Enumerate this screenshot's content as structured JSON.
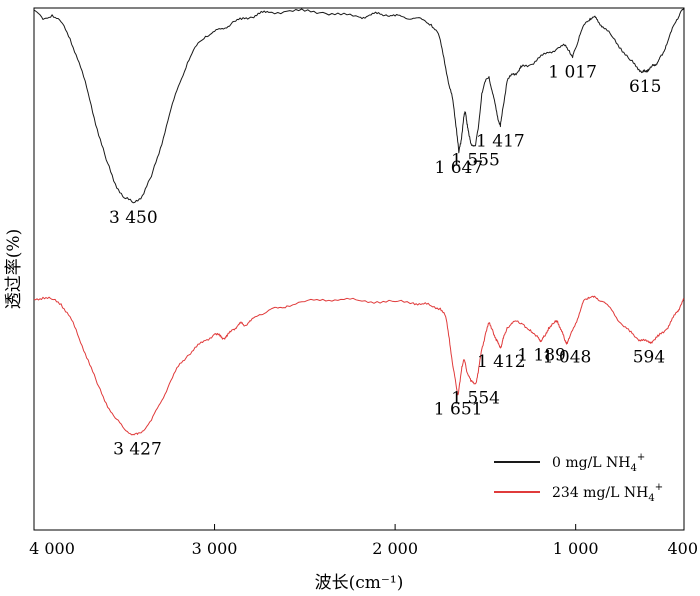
{
  "chart_data": {
    "type": "line",
    "title": "",
    "xlabel": "波长(cm⁻¹)",
    "ylabel": "透过率(%)",
    "xlim": [
      4000,
      400
    ],
    "x_reversed": true,
    "x_ticks": [
      {
        "value": 4000,
        "label": "4 000"
      },
      {
        "value": 3000,
        "label": "3 000"
      },
      {
        "value": 2000,
        "label": "2 000"
      },
      {
        "value": 1000,
        "label": "1 000"
      },
      {
        "value": 400,
        "label": "400"
      }
    ],
    "y_tick_labels": false,
    "grid": false,
    "legend_position": "bottom-right",
    "series": [
      {
        "name": "0 mg/L NH4+",
        "color": "#1a1a1a",
        "points": [
          [
            4000,
            100
          ],
          [
            3950,
            96
          ],
          [
            3900,
            98
          ],
          [
            3850,
            95
          ],
          [
            3800,
            88
          ],
          [
            3750,
            78
          ],
          [
            3700,
            65
          ],
          [
            3650,
            50
          ],
          [
            3600,
            37
          ],
          [
            3550,
            27
          ],
          [
            3500,
            21
          ],
          [
            3450,
            19
          ],
          [
            3400,
            22
          ],
          [
            3350,
            30
          ],
          [
            3300,
            42
          ],
          [
            3250,
            56
          ],
          [
            3200,
            68
          ],
          [
            3150,
            78
          ],
          [
            3100,
            85
          ],
          [
            3050,
            89
          ],
          [
            3000,
            91
          ],
          [
            2950,
            92
          ],
          [
            2900,
            95
          ],
          [
            2850,
            96
          ],
          [
            2800,
            97
          ],
          [
            2750,
            98.5
          ],
          [
            2700,
            99
          ],
          [
            2600,
            99.5
          ],
          [
            2500,
            99.5
          ],
          [
            2400,
            99
          ],
          [
            2300,
            98
          ],
          [
            2200,
            97
          ],
          [
            2150,
            97.5
          ],
          [
            2100,
            98.5
          ],
          [
            2050,
            98
          ],
          [
            2000,
            97.5
          ],
          [
            1950,
            97
          ],
          [
            1900,
            96.5
          ],
          [
            1850,
            96
          ],
          [
            1800,
            94
          ],
          [
            1760,
            90
          ],
          [
            1730,
            80
          ],
          [
            1700,
            68
          ],
          [
            1680,
            62
          ],
          [
            1660,
            50
          ],
          [
            1647,
            40
          ],
          [
            1635,
            45
          ],
          [
            1620,
            55
          ],
          [
            1610,
            57
          ],
          [
            1600,
            52
          ],
          [
            1590,
            47
          ],
          [
            1580,
            44
          ],
          [
            1555,
            43
          ],
          [
            1540,
            50
          ],
          [
            1520,
            65
          ],
          [
            1500,
            70
          ],
          [
            1480,
            72
          ],
          [
            1460,
            65
          ],
          [
            1440,
            58
          ],
          [
            1425,
            53
          ],
          [
            1417,
            51
          ],
          [
            1405,
            58
          ],
          [
            1380,
            70
          ],
          [
            1350,
            73
          ],
          [
            1320,
            74
          ],
          [
            1300,
            76
          ],
          [
            1250,
            77
          ],
          [
            1200,
            80
          ],
          [
            1150,
            82
          ],
          [
            1100,
            84
          ],
          [
            1060,
            85
          ],
          [
            1035,
            83
          ],
          [
            1017,
            80
          ],
          [
            1000,
            84
          ],
          [
            980,
            89
          ],
          [
            950,
            94
          ],
          [
            920,
            96.5
          ],
          [
            900,
            97
          ],
          [
            880,
            96
          ],
          [
            850,
            93
          ],
          [
            800,
            89
          ],
          [
            750,
            84
          ],
          [
            700,
            79
          ],
          [
            660,
            76
          ],
          [
            630,
            74
          ],
          [
            615,
            74
          ],
          [
            600,
            75
          ],
          [
            580,
            76
          ],
          [
            560,
            77
          ],
          [
            540,
            79
          ],
          [
            520,
            81
          ],
          [
            500,
            85
          ],
          [
            470,
            91
          ],
          [
            440,
            96
          ],
          [
            420,
            99
          ],
          [
            400,
            100
          ]
        ]
      },
      {
        "name": "234 mg/L NH4+",
        "color": "#e03b3b",
        "points": [
          [
            4000,
            66
          ],
          [
            3950,
            67
          ],
          [
            3900,
            66
          ],
          [
            3850,
            64
          ],
          [
            3800,
            58
          ],
          [
            3750,
            48
          ],
          [
            3700,
            38
          ],
          [
            3650,
            27
          ],
          [
            3600,
            18
          ],
          [
            3550,
            11
          ],
          [
            3500,
            6
          ],
          [
            3450,
            3.5
          ],
          [
            3427,
            3.5
          ],
          [
            3400,
            5
          ],
          [
            3350,
            10
          ],
          [
            3300,
            18
          ],
          [
            3250,
            27
          ],
          [
            3200,
            35
          ],
          [
            3150,
            40
          ],
          [
            3100,
            44
          ],
          [
            3050,
            47
          ],
          [
            3000,
            50
          ],
          [
            2970,
            49
          ],
          [
            2950,
            48
          ],
          [
            2930,
            49
          ],
          [
            2900,
            52
          ],
          [
            2870,
            54
          ],
          [
            2850,
            55
          ],
          [
            2830,
            54
          ],
          [
            2800,
            56
          ],
          [
            2750,
            59
          ],
          [
            2700,
            61
          ],
          [
            2650,
            62
          ],
          [
            2600,
            63
          ],
          [
            2500,
            65
          ],
          [
            2400,
            66
          ],
          [
            2300,
            66
          ],
          [
            2200,
            65.5
          ],
          [
            2100,
            65
          ],
          [
            2000,
            65
          ],
          [
            1900,
            64.5
          ],
          [
            1850,
            64
          ],
          [
            1800,
            63
          ],
          [
            1750,
            62
          ],
          [
            1720,
            58
          ],
          [
            1700,
            48
          ],
          [
            1680,
            35
          ],
          [
            1660,
            25
          ],
          [
            1651,
            22
          ],
          [
            1640,
            28
          ],
          [
            1630,
            35
          ],
          [
            1620,
            38
          ],
          [
            1610,
            36
          ],
          [
            1600,
            32
          ],
          [
            1580,
            28
          ],
          [
            1554,
            27
          ],
          [
            1540,
            32
          ],
          [
            1520,
            43
          ],
          [
            1500,
            50
          ],
          [
            1480,
            55
          ],
          [
            1460,
            52
          ],
          [
            1440,
            47
          ],
          [
            1425,
            45
          ],
          [
            1412,
            44
          ],
          [
            1400,
            48
          ],
          [
            1380,
            53
          ],
          [
            1350,
            55
          ],
          [
            1320,
            56
          ],
          [
            1300,
            55
          ],
          [
            1280,
            53
          ],
          [
            1250,
            52
          ],
          [
            1220,
            49
          ],
          [
            1200,
            47.5
          ],
          [
            1189,
            47
          ],
          [
            1170,
            49
          ],
          [
            1150,
            53
          ],
          [
            1120,
            55
          ],
          [
            1100,
            56
          ],
          [
            1080,
            52
          ],
          [
            1060,
            47
          ],
          [
            1048,
            46
          ],
          [
            1035,
            48
          ],
          [
            1000,
            55
          ],
          [
            970,
            62
          ],
          [
            950,
            66
          ],
          [
            930,
            67
          ],
          [
            900,
            67
          ],
          [
            880,
            66.5
          ],
          [
            850,
            65
          ],
          [
            800,
            61
          ],
          [
            750,
            55
          ],
          [
            700,
            51
          ],
          [
            660,
            48
          ],
          [
            630,
            47
          ],
          [
            594,
            46
          ],
          [
            570,
            47
          ],
          [
            540,
            49
          ],
          [
            500,
            52
          ],
          [
            470,
            56
          ],
          [
            440,
            60
          ],
          [
            420,
            63
          ],
          [
            400,
            66
          ]
        ]
      }
    ],
    "annotations": [
      {
        "text": "3 450",
        "series": 0,
        "x": 3450
      },
      {
        "text": "1 647",
        "series": 0,
        "x": 1647
      },
      {
        "text": "1 555",
        "series": 0,
        "x": 1555
      },
      {
        "text": "1 417",
        "series": 0,
        "x": 1417
      },
      {
        "text": "1 017",
        "series": 0,
        "x": 1017
      },
      {
        "text": "615",
        "series": 0,
        "x": 615
      },
      {
        "text": "3 427",
        "series": 1,
        "x": 3427
      },
      {
        "text": "1 651",
        "series": 1,
        "x": 1651
      },
      {
        "text": "1 554",
        "series": 1,
        "x": 1554
      },
      {
        "text": "1 412",
        "series": 1,
        "x": 1412
      },
      {
        "text": "1 189",
        "series": 1,
        "x": 1189
      },
      {
        "text": "1 048",
        "series": 1,
        "x": 1048
      },
      {
        "text": "594",
        "series": 1,
        "x": 594
      }
    ],
    "legend": [
      {
        "series": 0,
        "main": "0 mg/L NH",
        "sub": "4",
        "sup": "+"
      },
      {
        "series": 1,
        "main": "234 mg/L NH",
        "sub": "4",
        "sup": "+"
      }
    ]
  }
}
